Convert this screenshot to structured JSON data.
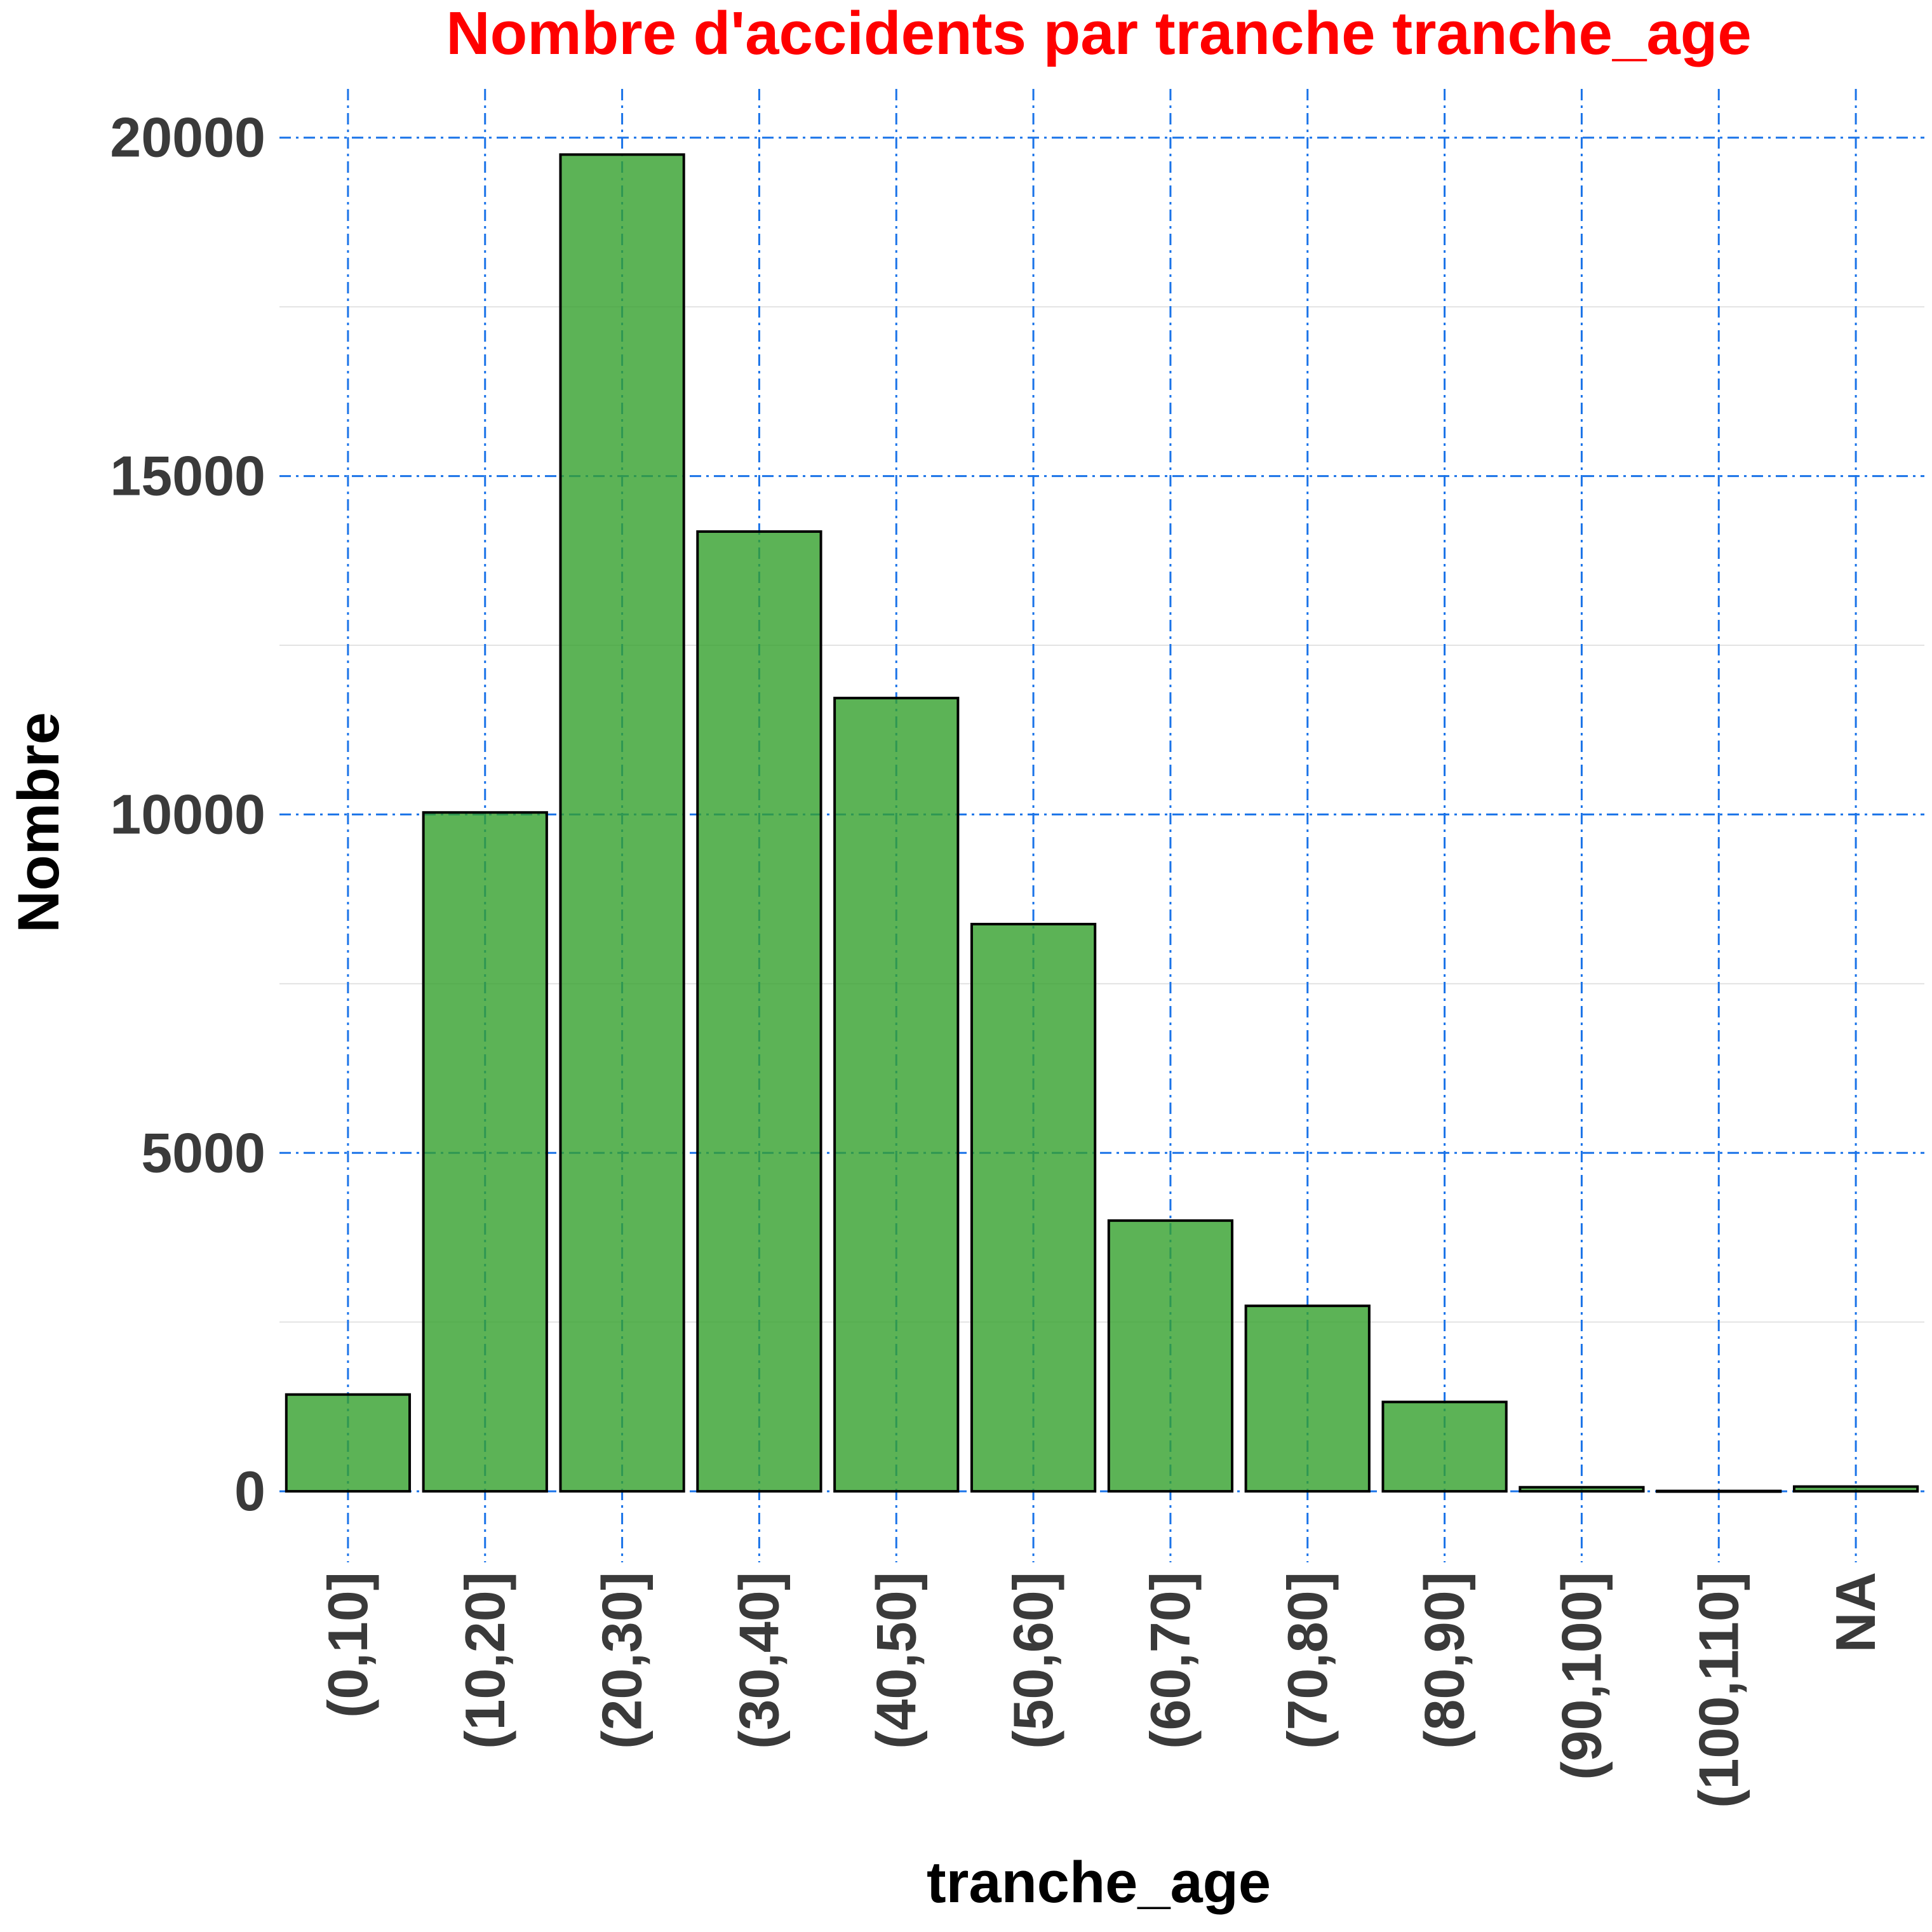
{
  "chart_data": {
    "type": "bar",
    "title": "Nombre d'accidents par tranche tranche_age",
    "xlabel": "tranche_age",
    "ylabel": "Nombre",
    "categories": [
      "(0,10]",
      "(10,20]",
      "(20,30]",
      "(30,40]",
      "(40,50]",
      "(50,60]",
      "(60,70]",
      "(70,80]",
      "(80,90]",
      "(90,100]",
      "(100,110]",
      "NA"
    ],
    "values": [
      1430,
      10030,
      19750,
      14180,
      11720,
      8380,
      4000,
      2740,
      1320,
      60,
      5,
      70
    ],
    "ylim": [
      -1050,
      20720
    ],
    "yticks": [
      0,
      5000,
      10000,
      15000,
      20000
    ],
    "grid": true,
    "legend": "none",
    "colors": {
      "bar_fill": "#33a02c",
      "bar_stroke": "#000000",
      "major_grid": "#1a73e8",
      "minor_grid": "#e3e3e3",
      "title": "#ff0000"
    }
  }
}
